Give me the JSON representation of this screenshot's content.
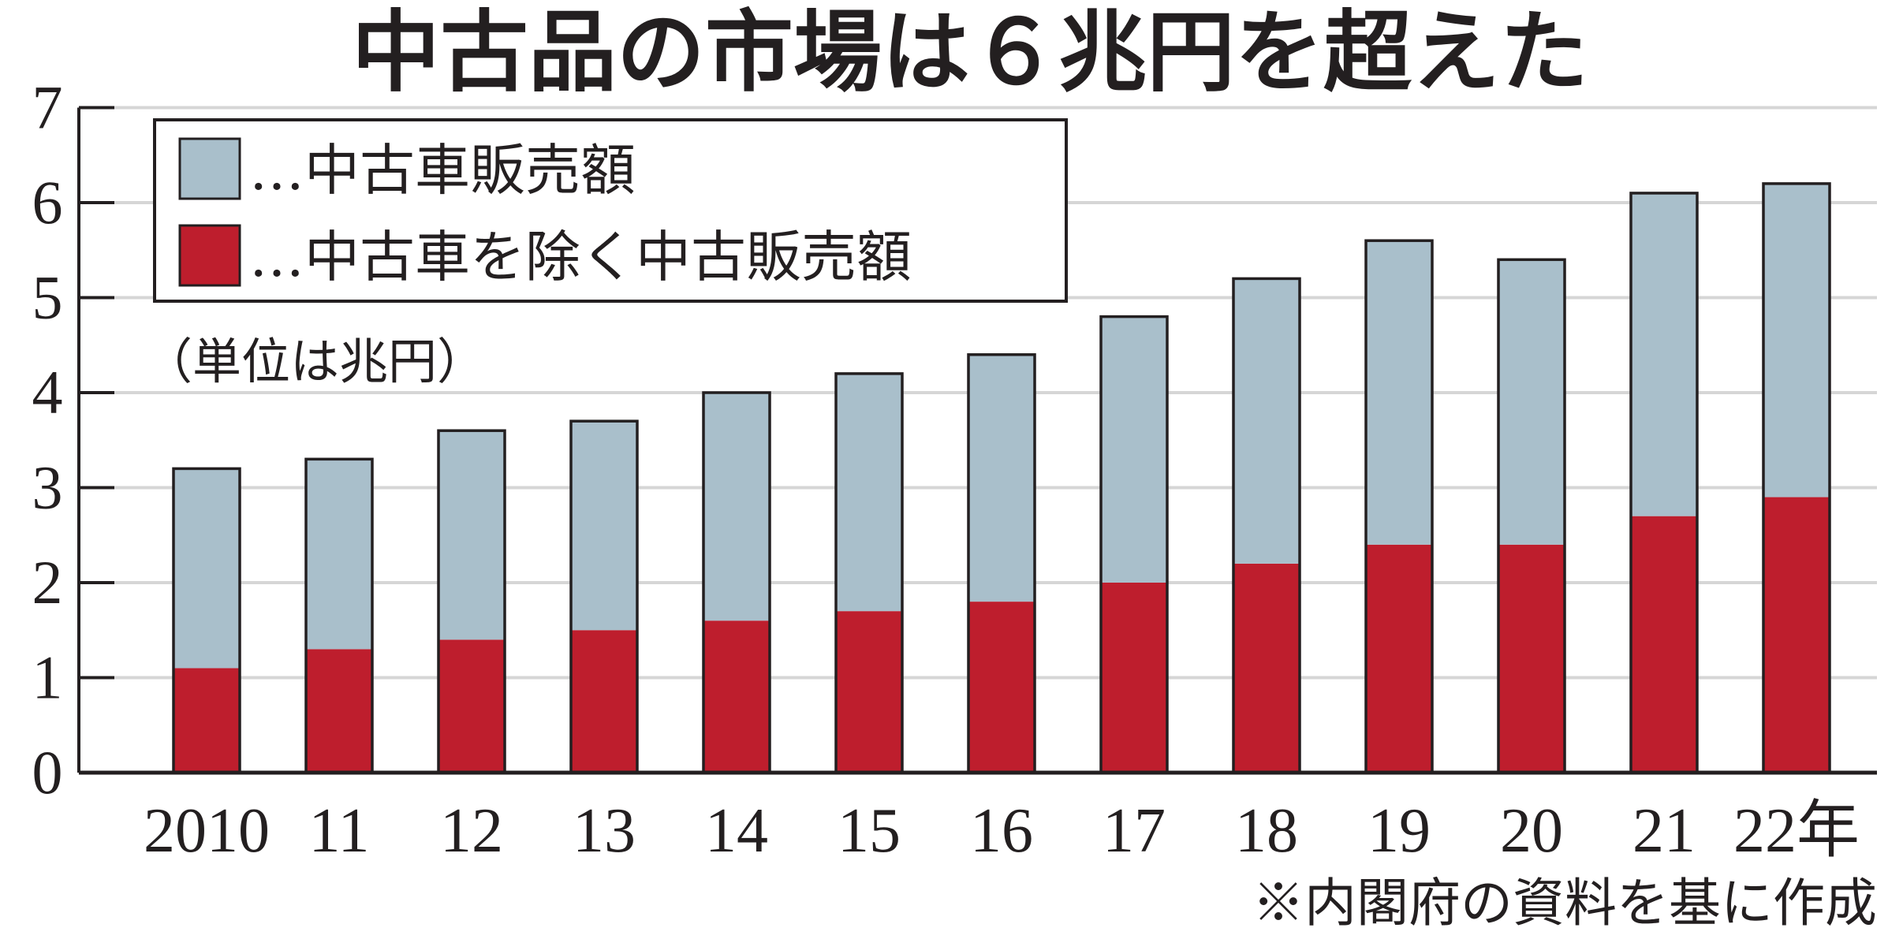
{
  "chart_data": {
    "type": "bar",
    "stacked": true,
    "title": "中古品の市場は６兆円を超えた",
    "unit_note": "（単位は兆円）",
    "source_note": "※内閣府の資料を基に作成",
    "categories": [
      "2010",
      "11",
      "12",
      "13",
      "14",
      "15",
      "16",
      "17",
      "18",
      "19",
      "20",
      "21",
      "22年"
    ],
    "series": [
      {
        "name": "…中古車を除く中古販売額",
        "color": "#be1e2d",
        "values": [
          1.1,
          1.3,
          1.4,
          1.5,
          1.6,
          1.7,
          1.8,
          2.0,
          2.2,
          2.4,
          2.4,
          2.7,
          2.9
        ]
      },
      {
        "name": "…中古車販売額",
        "color": "#a9bfcb",
        "values": [
          2.1,
          2.0,
          2.2,
          2.2,
          2.4,
          2.5,
          2.6,
          2.8,
          3.0,
          3.2,
          3.0,
          3.4,
          3.3
        ]
      }
    ],
    "totals": [
      3.2,
      3.3,
      3.6,
      3.7,
      4.0,
      4.2,
      4.4,
      4.8,
      5.2,
      5.6,
      5.4,
      6.1,
      6.2
    ],
    "yticks": [
      "0",
      "1",
      "2",
      "3",
      "4",
      "5",
      "6",
      "7"
    ],
    "ylim": [
      0,
      7
    ],
    "grid": true,
    "legend_position": "top-left"
  }
}
